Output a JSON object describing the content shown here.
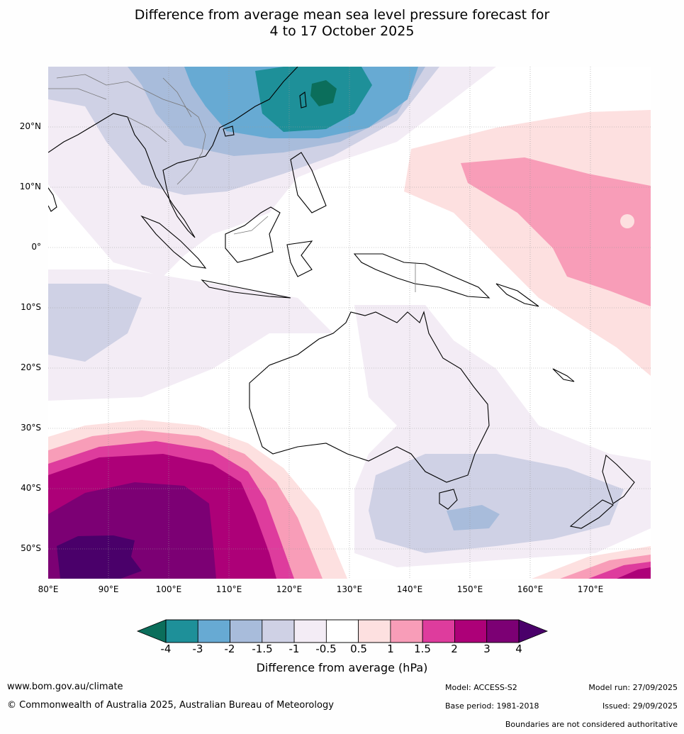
{
  "title": {
    "line1": "Difference from average mean sea level pressure forecast for",
    "line2": "4 to 17 October 2025"
  },
  "map": {
    "lat_labels": [
      "20°N",
      "10°N",
      "0°",
      "10°S",
      "20°S",
      "30°S",
      "40°S",
      "50°S"
    ],
    "lon_labels": [
      "80°E",
      "90°E",
      "100°E",
      "110°E",
      "120°E",
      "130°E",
      "140°E",
      "150°E",
      "160°E",
      "170°E"
    ],
    "extent": {
      "lon_min": 80,
      "lon_max": 180,
      "lat_min": -55,
      "lat_max": 30
    }
  },
  "colorbar": {
    "label": "Difference from average (hPa)",
    "ticks": [
      "-4",
      "-3",
      "-2",
      "-1.5",
      "-1",
      "-0.5",
      "0.5",
      "1",
      "1.5",
      "2",
      "3",
      "4"
    ],
    "colors": [
      "#0b6e5b",
      "#1e9099",
      "#67aad3",
      "#a8bcdb",
      "#cfd1e5",
      "#f3ecf5",
      "#ffffff",
      "#fde0e0",
      "#f89db8",
      "#de3c9d",
      "#ad0078",
      "#7c0074",
      "#4a006a"
    ]
  },
  "footer": {
    "website": "www.bom.gov.au/climate",
    "copyright": "© Commonwealth of Australia 2025, Australian Bureau of Meteorology",
    "model": "Model: ACCESS-S2",
    "model_run": "Model run: 27/09/2025",
    "base_period": "Base period: 1981-2018",
    "issued": "Issued: 29/09/2025",
    "disclaimer": "Boundaries are not considered authoritative"
  }
}
